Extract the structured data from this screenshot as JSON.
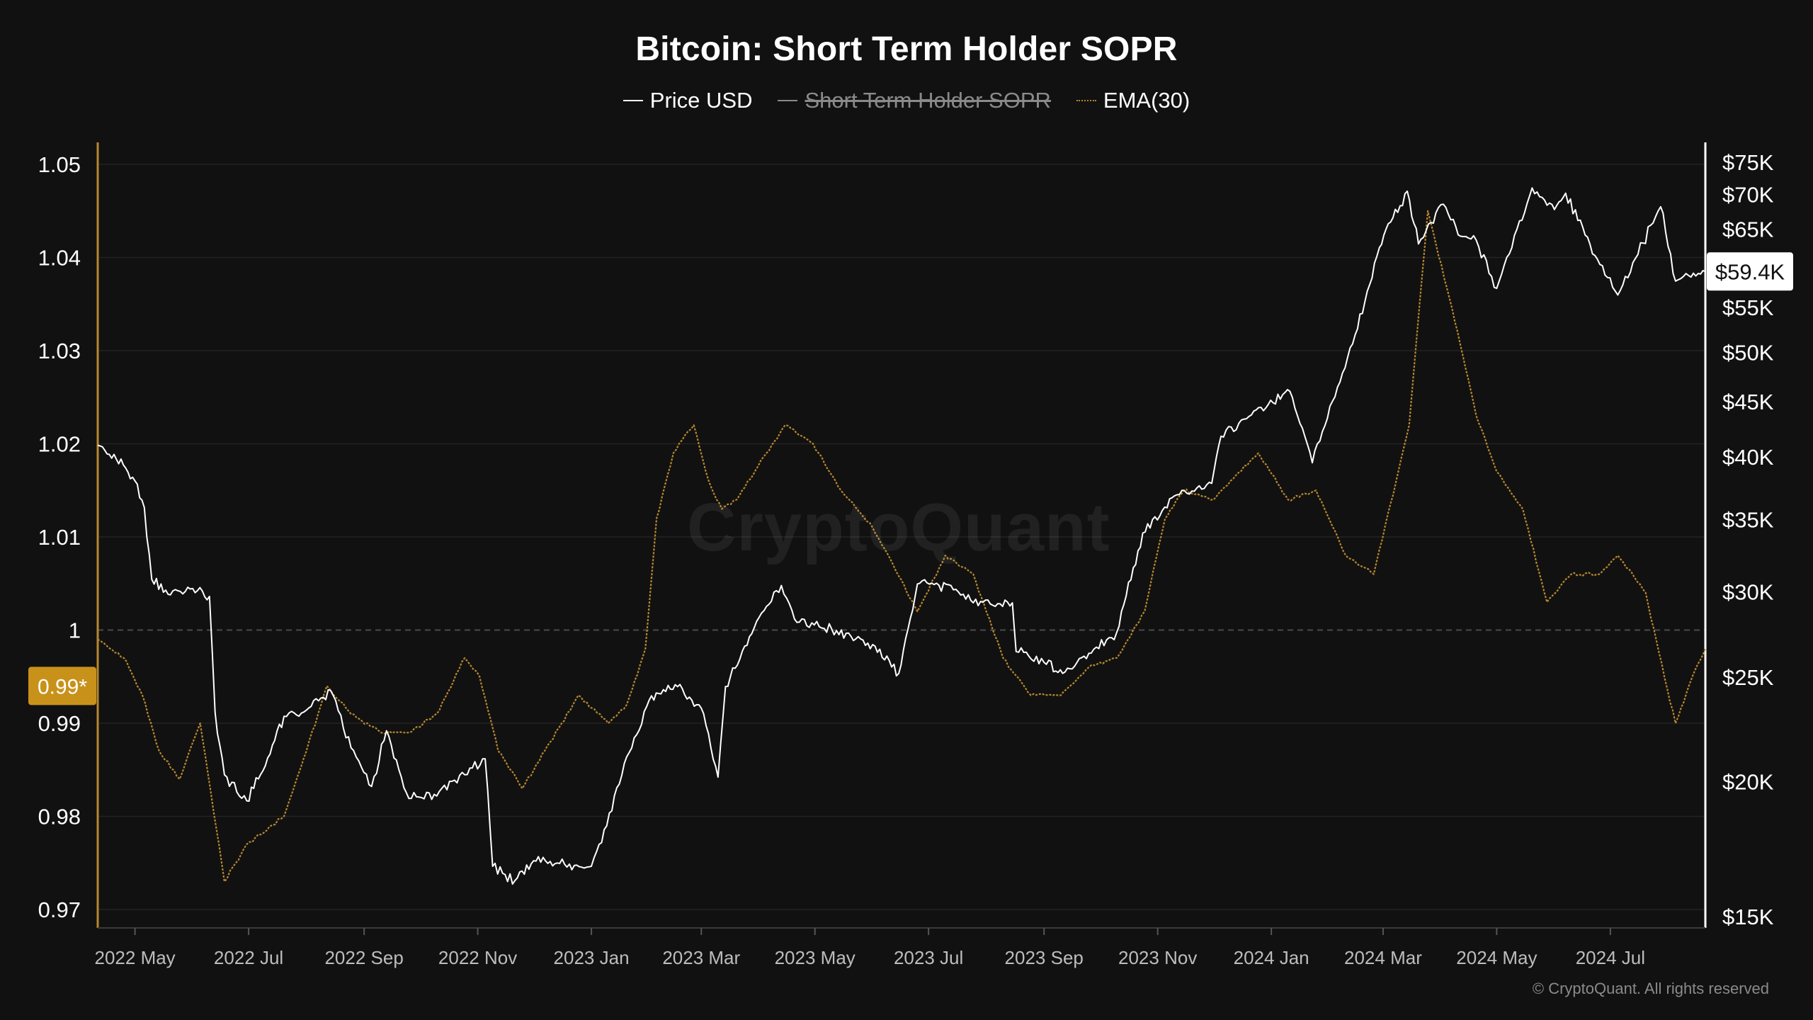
{
  "title": "Bitcoin: Short Term Holder SOPR",
  "legend": [
    {
      "label": "Price USD",
      "state": "enabled",
      "color": "#ffffff"
    },
    {
      "label": "Short Term Holder SOPR",
      "state": "disabled",
      "color": "#8a8a8a"
    },
    {
      "label": "EMA(30)",
      "state": "enabled",
      "color": "#b7872f"
    }
  ],
  "watermark": "CryptoQuant",
  "copyright": "© CryptoQuant. All rights reserved",
  "colors": {
    "background": "#111111",
    "price_line": "#ffffff",
    "ema_line": "#b7872f",
    "left_axis": "#b7872f",
    "right_axis": "#ffffff",
    "marker_bg": "#c8921a",
    "grid": "#232323"
  },
  "chart_data": {
    "type": "line",
    "title": "Bitcoin: Short Term Holder SOPR",
    "grid": true,
    "legend_position": "top-center",
    "x_range": [
      "2022-04-11",
      "2024-08-21"
    ],
    "x_ticks": [
      "2022 May",
      "2022 Jul",
      "2022 Sep",
      "2022 Nov",
      "2023 Jan",
      "2023 Mar",
      "2023 May",
      "2023 Jul",
      "2023 Sep",
      "2023 Nov",
      "2024 Jan",
      "2024 Mar",
      "2024 May",
      "2024 Jul"
    ],
    "y_left": {
      "ticks": [
        "1.05",
        "1.04",
        "1.03",
        "1.02",
        "1.01",
        "1",
        "0.99",
        "0.98",
        "0.97"
      ],
      "range": [
        0.969,
        1.0525
      ],
      "reference_line": 1.0,
      "current_marker": {
        "value": 0.994,
        "label": "0.99*"
      }
    },
    "y_right": {
      "scale": "log",
      "ticks": [
        "$75K",
        "$70K",
        "$65K",
        "$60K",
        "$55K",
        "$50K",
        "$45K",
        "$40K",
        "$35K",
        "$30K",
        "$25K",
        "$20K",
        "$15K"
      ],
      "range": [
        15000,
        75000
      ],
      "current_marker": {
        "value": 59400,
        "label": "$59.4K"
      }
    },
    "series": [
      {
        "name": "Price USD",
        "axis": "right",
        "x": [
          "2022-04-11",
          "2022-04-21",
          "2022-05-01",
          "2022-05-06",
          "2022-05-10",
          "2022-05-20",
          "2022-06-01",
          "2022-06-10",
          "2022-06-13",
          "2022-06-18",
          "2022-06-30",
          "2022-07-10",
          "2022-07-20",
          "2022-08-01",
          "2022-08-14",
          "2022-08-25",
          "2022-09-05",
          "2022-09-13",
          "2022-09-25",
          "2022-10-10",
          "2022-10-25",
          "2022-11-05",
          "2022-11-09",
          "2022-11-21",
          "2022-12-01",
          "2022-12-15",
          "2023-01-01",
          "2023-01-12",
          "2023-01-20",
          "2023-02-01",
          "2023-02-15",
          "2023-03-01",
          "2023-03-10",
          "2023-03-14",
          "2023-04-01",
          "2023-04-13",
          "2023-04-20",
          "2023-05-10",
          "2023-06-01",
          "2023-06-15",
          "2023-06-25",
          "2023-07-13",
          "2023-07-25",
          "2023-08-15",
          "2023-08-17",
          "2023-09-01",
          "2023-09-11",
          "2023-09-25",
          "2023-10-10",
          "2023-10-24",
          "2023-11-10",
          "2023-11-30",
          "2023-12-05",
          "2023-12-20",
          "2024-01-11",
          "2024-01-23",
          "2024-02-15",
          "2024-02-28",
          "2024-03-05",
          "2024-03-14",
          "2024-03-20",
          "2024-04-01",
          "2024-04-13",
          "2024-04-20",
          "2024-05-01",
          "2024-05-20",
          "2024-06-01",
          "2024-06-07",
          "2024-06-24",
          "2024-07-05",
          "2024-07-28",
          "2024-08-05",
          "2024-08-12",
          "2024-08-21"
        ],
        "y": [
          41000,
          39800,
          38000,
          35900,
          30800,
          29800,
          30200,
          29700,
          23200,
          20300,
          19200,
          20700,
          23000,
          23300,
          24300,
          21500,
          19800,
          22300,
          19300,
          19400,
          20300,
          21000,
          16700,
          16200,
          16900,
          16800,
          16700,
          18800,
          21100,
          23800,
          24600,
          23400,
          20200,
          24500,
          28400,
          30400,
          28300,
          27700,
          26800,
          25200,
          30500,
          30400,
          29300,
          29300,
          26400,
          25800,
          25200,
          26300,
          27500,
          34000,
          36800,
          37800,
          41800,
          43600,
          46000,
          39500,
          51900,
          62500,
          66000,
          70500,
          63000,
          68500,
          64000,
          63500,
          57300,
          71000,
          67800,
          70200,
          61000,
          56500,
          68200,
          58200,
          58900,
          59400
        ]
      },
      {
        "name": "EMA(30)",
        "axis": "left",
        "x": [
          "2022-04-11",
          "2022-04-25",
          "2022-05-05",
          "2022-05-14",
          "2022-05-25",
          "2022-06-05",
          "2022-06-18",
          "2022-06-30",
          "2022-07-20",
          "2022-08-01",
          "2022-08-12",
          "2022-08-25",
          "2022-09-10",
          "2022-09-25",
          "2022-10-10",
          "2022-10-25",
          "2022-11-02",
          "2022-11-12",
          "2022-11-25",
          "2022-12-10",
          "2022-12-25",
          "2023-01-10",
          "2023-01-20",
          "2023-01-30",
          "2023-02-05",
          "2023-02-14",
          "2023-02-25",
          "2023-03-05",
          "2023-03-12",
          "2023-03-20",
          "2023-04-05",
          "2023-04-15",
          "2023-04-30",
          "2023-05-15",
          "2023-06-01",
          "2023-06-12",
          "2023-06-25",
          "2023-07-10",
          "2023-07-25",
          "2023-08-10",
          "2023-08-25",
          "2023-09-10",
          "2023-09-25",
          "2023-10-10",
          "2023-10-25",
          "2023-11-05",
          "2023-11-15",
          "2023-12-01",
          "2023-12-10",
          "2023-12-25",
          "2024-01-10",
          "2024-01-25",
          "2024-02-10",
          "2024-02-25",
          "2024-03-08",
          "2024-03-15",
          "2024-03-25",
          "2024-04-10",
          "2024-04-20",
          "2024-05-01",
          "2024-05-15",
          "2024-05-28",
          "2024-06-10",
          "2024-06-25",
          "2024-07-05",
          "2024-07-20",
          "2024-07-30",
          "2024-08-05",
          "2024-08-14",
          "2024-08-21"
        ],
        "y": [
          0.999,
          0.997,
          0.993,
          0.987,
          0.984,
          0.99,
          0.973,
          0.977,
          0.98,
          0.987,
          0.994,
          0.991,
          0.989,
          0.989,
          0.991,
          0.997,
          0.995,
          0.987,
          0.983,
          0.988,
          0.993,
          0.99,
          0.992,
          0.998,
          1.012,
          1.019,
          1.022,
          1.016,
          1.013,
          1.014,
          1.019,
          1.022,
          1.02,
          1.015,
          1.011,
          1.007,
          1.002,
          1.008,
          1.006,
          0.997,
          0.993,
          0.993,
          0.996,
          0.997,
          1.002,
          1.012,
          1.015,
          1.014,
          1.016,
          1.019,
          1.014,
          1.015,
          1.008,
          1.006,
          1.016,
          1.022,
          1.045,
          1.032,
          1.023,
          1.017,
          1.013,
          1.003,
          1.006,
          1.006,
          1.008,
          1.004,
          0.995,
          0.99,
          0.995,
          0.998
        ]
      }
    ]
  }
}
